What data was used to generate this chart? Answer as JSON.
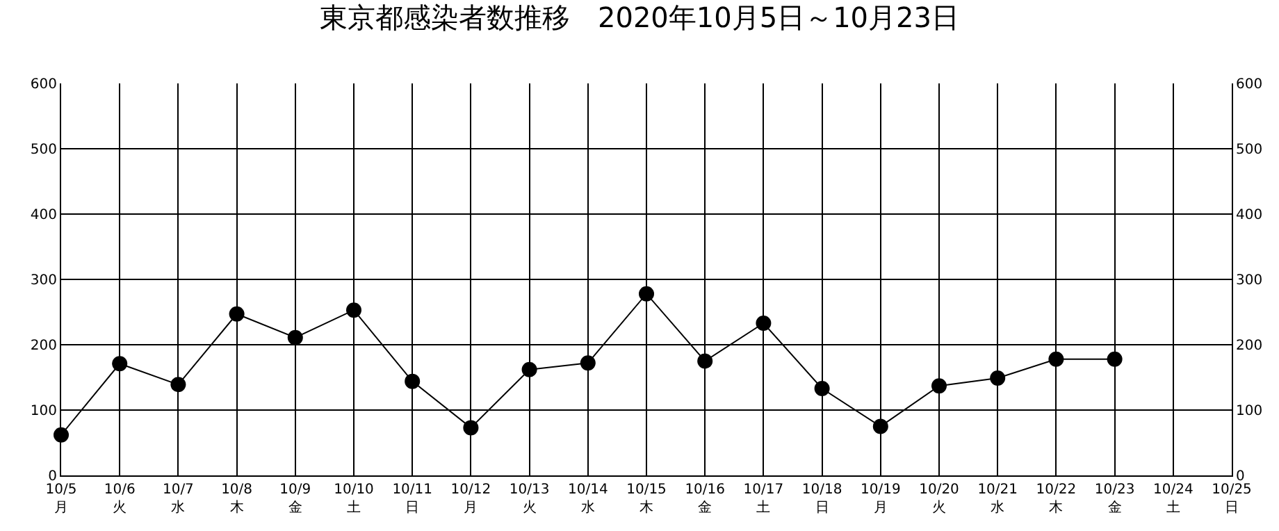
{
  "chart_data": {
    "type": "line",
    "title": "東京都感染者数推移　2020年10月5日～10月23日",
    "x": [
      "--10-05",
      "--10-06",
      "--10-07",
      "--10-08",
      "--10-09",
      "--10-10",
      "--10-11",
      "--10-12",
      "--10-13",
      "--10-14",
      "--10-15",
      "--10-16",
      "--10-17",
      "--10-18",
      "--10-19",
      "--10-20",
      "--10-21",
      "--10-22",
      "--10-23"
    ],
    "series": [
      {
        "color": "#000000",
        "values": [
          62,
          171,
          139,
          247,
          211,
          253,
          144,
          73,
          162,
          172,
          278,
          175,
          233,
          133,
          75,
          137,
          149,
          178,
          178
        ]
      }
    ],
    "xlim": [
      "--10-05",
      "--10-25"
    ],
    "xticks": [
      {
        "value": "--10-05",
        "label": "10/5\n月"
      },
      {
        "value": "--10-06",
        "label": "10/6\n火"
      },
      {
        "value": "--10-07",
        "label": "10/7\n水"
      },
      {
        "value": "--10-08",
        "label": "10/8\n木"
      },
      {
        "value": "--10-09",
        "label": "10/9\n金"
      },
      {
        "value": "--10-10",
        "label": "10/10\n土"
      },
      {
        "value": "--10-11",
        "label": "10/11\n日"
      },
      {
        "value": "--10-12",
        "label": "10/12\n月"
      },
      {
        "value": "--10-13",
        "label": "10/13\n火"
      },
      {
        "value": "--10-14",
        "label": "10/14\n水"
      },
      {
        "value": "--10-15",
        "label": "10/15\n木"
      },
      {
        "value": "--10-16",
        "label": "10/16\n金"
      },
      {
        "value": "--10-17",
        "label": "10/17\n土"
      },
      {
        "value": "--10-18",
        "label": "10/18\n日"
      },
      {
        "value": "--10-19",
        "label": "10/19\n月"
      },
      {
        "value": "--10-20",
        "label": "10/20\n火"
      },
      {
        "value": "--10-21",
        "label": "10/21\n水"
      },
      {
        "value": "--10-22",
        "label": "10/22\n木"
      },
      {
        "value": "--10-23",
        "label": "10/23\n金"
      },
      {
        "value": "--10-24",
        "label": "10/24\n土"
      },
      {
        "value": "--10-25",
        "label": "10/25\n日"
      }
    ],
    "ylim": [
      0,
      600
    ],
    "yticks": [
      0,
      100,
      200,
      300,
      400,
      500,
      600
    ],
    "y2lim": [
      0,
      600
    ],
    "y2ticks": [
      0,
      100,
      200,
      300,
      400,
      500,
      600
    ],
    "grid": true,
    "marker": "circle",
    "line_style": "solid"
  }
}
